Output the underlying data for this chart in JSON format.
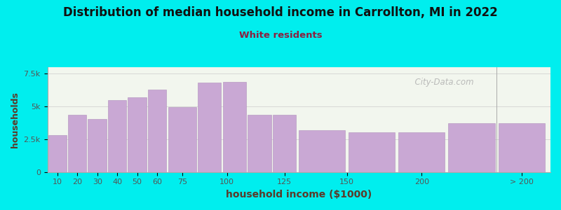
{
  "title": "Distribution of median household income in Carrollton, MI in 2022",
  "subtitle": "White residents",
  "xlabel": "household income ($1000)",
  "ylabel": "households",
  "background_outer": "#00EEEE",
  "background_inner_left": "#e8f0dc",
  "background_inner_right": "#f5f5f5",
  "bar_color": "#c9a8d4",
  "bar_edge_color": "#b090bc",
  "title_color": "#111111",
  "subtitle_color": "#8b2040",
  "axis_label_color": "#5a3a2a",
  "tick_color": "#555555",
  "values": [
    2800,
    4350,
    4050,
    5500,
    5700,
    6300,
    4950,
    6850,
    6900,
    4350,
    4350,
    3200,
    3050,
    3050,
    3700,
    3700
  ],
  "bar_lefts": [
    0,
    10,
    20,
    30,
    40,
    50,
    60,
    75,
    87.5,
    100,
    112.5,
    125,
    150,
    175,
    200,
    225
  ],
  "bar_widths": [
    10,
    10,
    10,
    10,
    10,
    10,
    15,
    12.5,
    12.5,
    12.5,
    12.5,
    25,
    25,
    25,
    25,
    25
  ],
  "ylim": [
    0,
    8000
  ],
  "yticks": [
    0,
    2500,
    5000,
    7500
  ],
  "ytick_labels": [
    "0",
    "2.5k",
    "5k",
    "7.5k"
  ],
  "watermark": "  City-Data.com"
}
